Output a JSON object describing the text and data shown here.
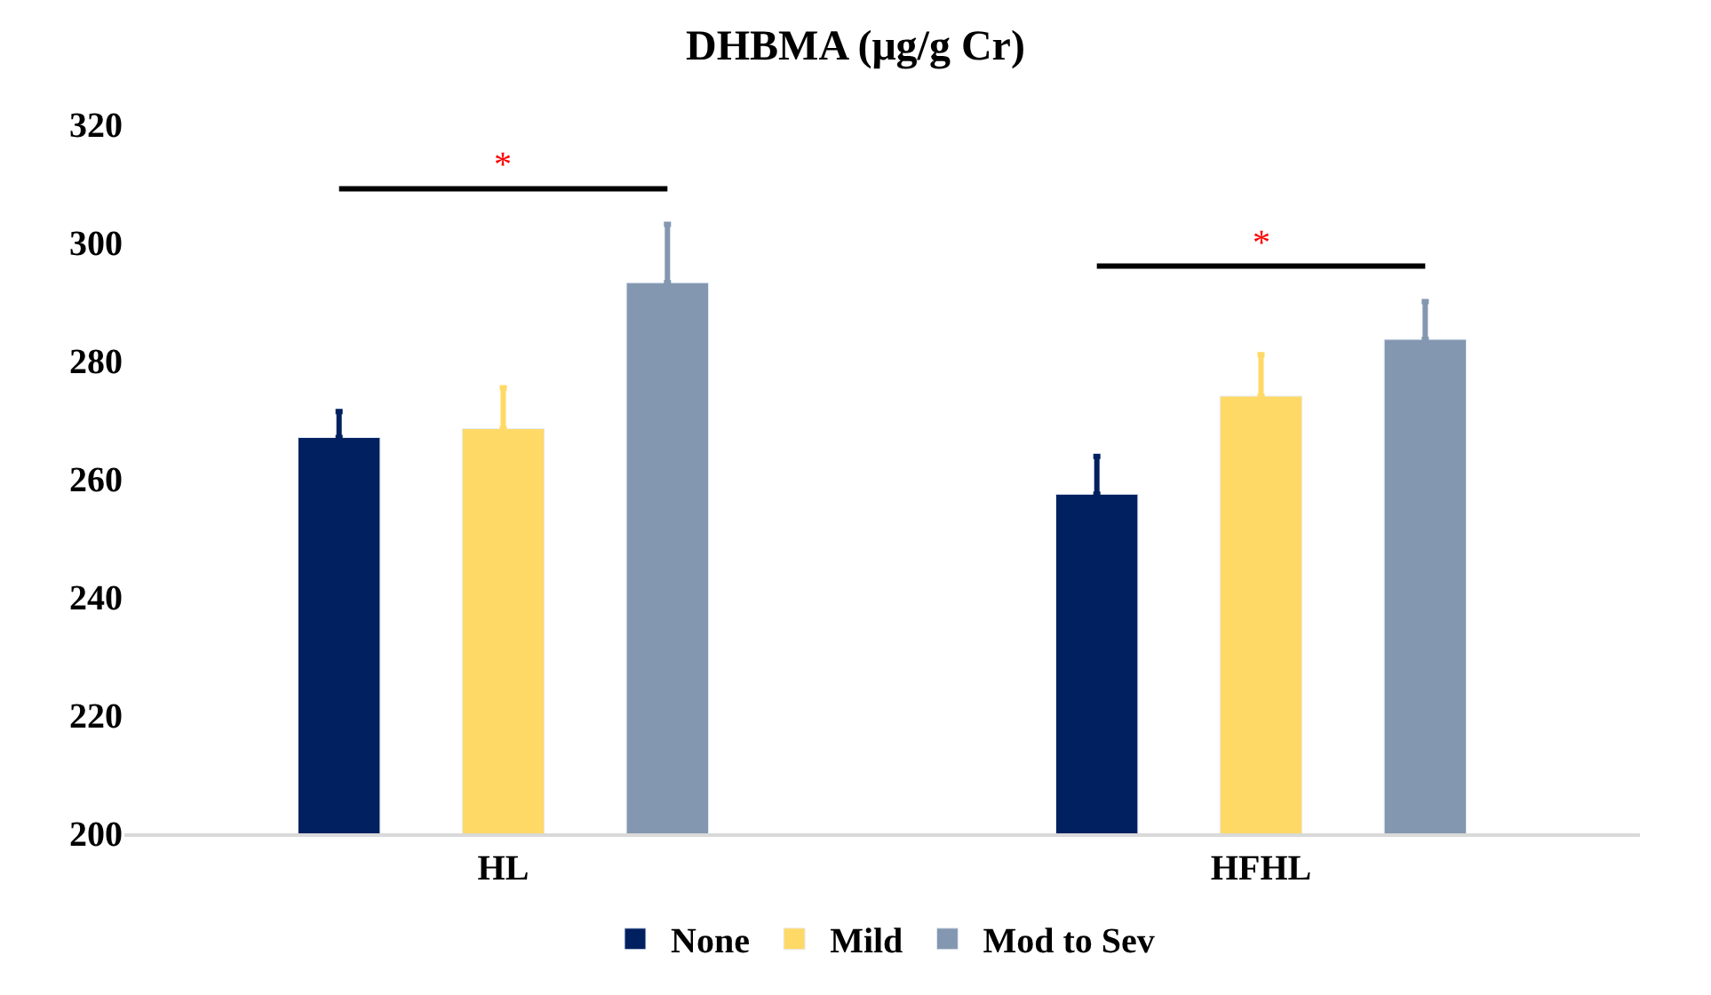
{
  "chart_data": {
    "type": "bar",
    "title": "DHBMA (μg/g Cr)",
    "categories": [
      "HL",
      "HFHL"
    ],
    "series": [
      {
        "name": "None",
        "color": "#002060",
        "values": [
          267,
          257.4
        ],
        "errors": [
          [
            267,
            271.4
          ],
          [
            257.4,
            263.8
          ]
        ]
      },
      {
        "name": "Mild",
        "color": "#ffd966",
        "values": [
          268.5,
          274
        ],
        "errors": [
          [
            268.5,
            275.4
          ],
          [
            274,
            281
          ]
        ]
      },
      {
        "name": "Mod to Sev",
        "color": "#8497b0",
        "values": [
          293.2,
          283.6
        ],
        "errors": [
          [
            293.2,
            303.1
          ],
          [
            283.6,
            290
          ]
        ]
      }
    ],
    "ylim": [
      200,
      320
    ],
    "yticks": [
      200,
      220,
      240,
      260,
      280,
      300,
      320
    ],
    "annotations": [
      "*",
      "*"
    ],
    "legend": "bottom"
  }
}
